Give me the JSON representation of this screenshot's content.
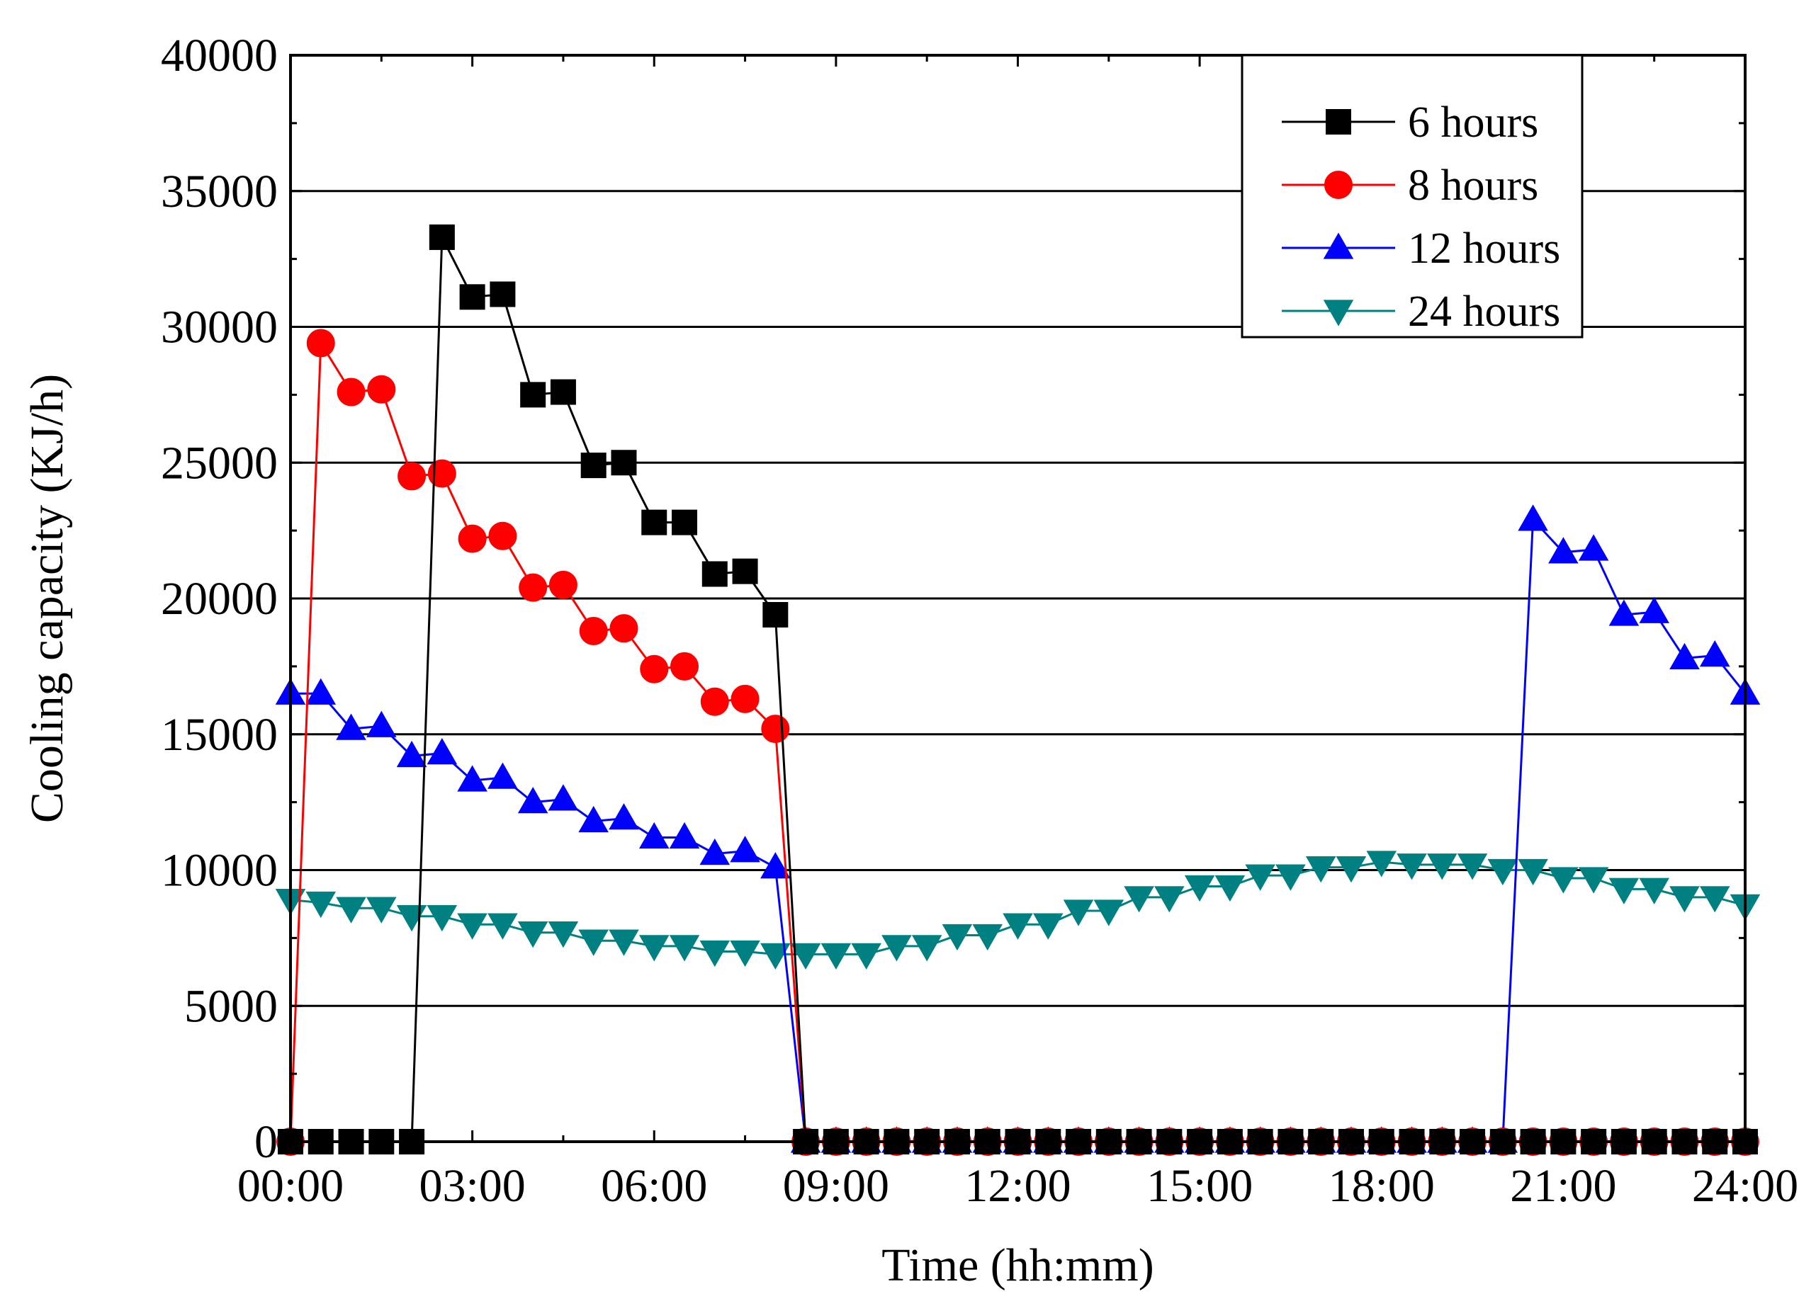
{
  "chart_data": {
    "type": "line",
    "title": "",
    "xlabel": "Time (hh:mm)",
    "ylabel": "Cooling capacity (KJ/h)",
    "xlim": [
      0,
      24
    ],
    "ylim": [
      0,
      40000
    ],
    "x_tick_labels": [
      "00:00",
      "03:00",
      "06:00",
      "09:00",
      "12:00",
      "15:00",
      "18:00",
      "21:00",
      "24:00"
    ],
    "y_tick_labels": [
      "0",
      "5000",
      "10000",
      "15000",
      "20000",
      "25000",
      "30000",
      "35000",
      "40000"
    ],
    "grid": "horizontal",
    "legend_position": "top-right",
    "x_step_hours": 0.5,
    "series": [
      {
        "name": "6 hours",
        "color": "#000000",
        "marker": "square",
        "x_start": 0,
        "values": [
          0,
          0,
          0,
          0,
          0,
          33300,
          31100,
          31200,
          27500,
          27600,
          24900,
          25000,
          22800,
          22800,
          20900,
          21000,
          19400,
          0,
          0,
          0,
          0,
          0,
          0,
          0,
          0,
          0,
          0,
          0,
          0,
          0,
          0,
          0,
          0,
          0,
          0,
          0,
          0,
          0,
          0,
          0,
          0,
          0,
          0,
          0,
          0,
          0,
          0,
          0,
          0
        ]
      },
      {
        "name": "8 hours",
        "color": "#ff0000",
        "marker": "circle",
        "x_start": 0,
        "values": [
          0,
          29400,
          27600,
          27700,
          24500,
          24600,
          22200,
          22300,
          20400,
          20500,
          18800,
          18900,
          17400,
          17500,
          16200,
          16300,
          15200,
          0,
          0,
          0,
          0,
          0,
          0,
          0,
          0,
          0,
          0,
          0,
          0,
          0,
          0,
          0,
          0,
          0,
          0,
          0,
          0,
          0,
          0,
          0,
          0,
          0,
          0,
          0,
          0,
          0,
          0,
          0,
          0
        ]
      },
      {
        "name": "12 hours",
        "color": "#0000ff",
        "marker": "triangle-up",
        "x_start": 0,
        "values": [
          16500,
          16500,
          15200,
          15300,
          14200,
          14300,
          13300,
          13400,
          12500,
          12600,
          11800,
          11900,
          11200,
          11200,
          10600,
          10700,
          10100,
          0,
          0,
          0,
          0,
          0,
          0,
          0,
          0,
          0,
          0,
          0,
          0,
          0,
          0,
          0,
          0,
          0,
          0,
          0,
          0,
          0,
          0,
          0,
          0,
          22900,
          21700,
          21800,
          19400,
          19500,
          17800,
          17900,
          16500
        ]
      },
      {
        "name": "24 hours",
        "color": "#008080",
        "marker": "triangle-down",
        "x_start": 0,
        "values": [
          8900,
          8800,
          8600,
          8600,
          8300,
          8300,
          8000,
          8000,
          7700,
          7700,
          7400,
          7400,
          7200,
          7200,
          7000,
          7000,
          6900,
          6900,
          6900,
          6900,
          7200,
          7200,
          7600,
          7600,
          8000,
          8000,
          8500,
          8500,
          9000,
          9000,
          9400,
          9400,
          9800,
          9800,
          10100,
          10100,
          10300,
          10200,
          10200,
          10200,
          10000,
          10000,
          9700,
          9700,
          9300,
          9300,
          9000,
          9000,
          8700
        ]
      }
    ]
  }
}
